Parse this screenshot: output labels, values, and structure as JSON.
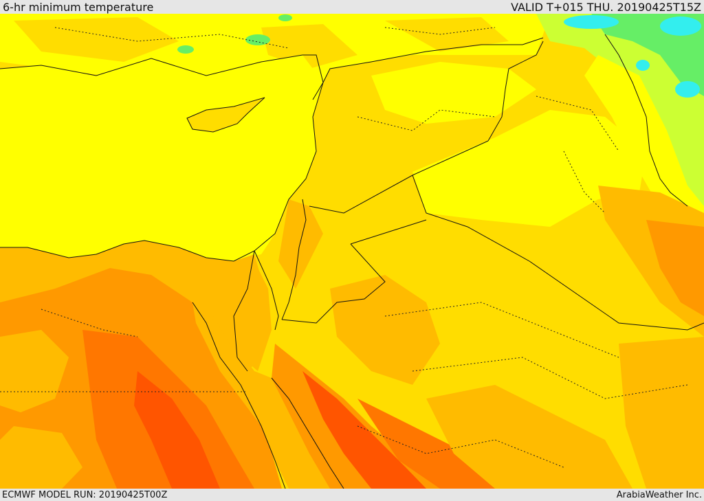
{
  "header": {
    "title": "6-hr minimum temperature",
    "valid": "VALID T+015 THU. 20190425T15Z"
  },
  "footer": {
    "model_run": "ECMWF MODEL RUN: 20190425T00Z",
    "provider": "ArabiaWeather Inc."
  },
  "colors": {
    "yellow": "#ffff00",
    "gold": "#ffdd00",
    "amber": "#ffbb00",
    "orange": "#ff9900",
    "dark_orange": "#ff7700",
    "red_orange": "#ff5500",
    "lime": "#ccff33",
    "green": "#66ee66",
    "cyan": "#33eeee",
    "border": "#111111"
  }
}
